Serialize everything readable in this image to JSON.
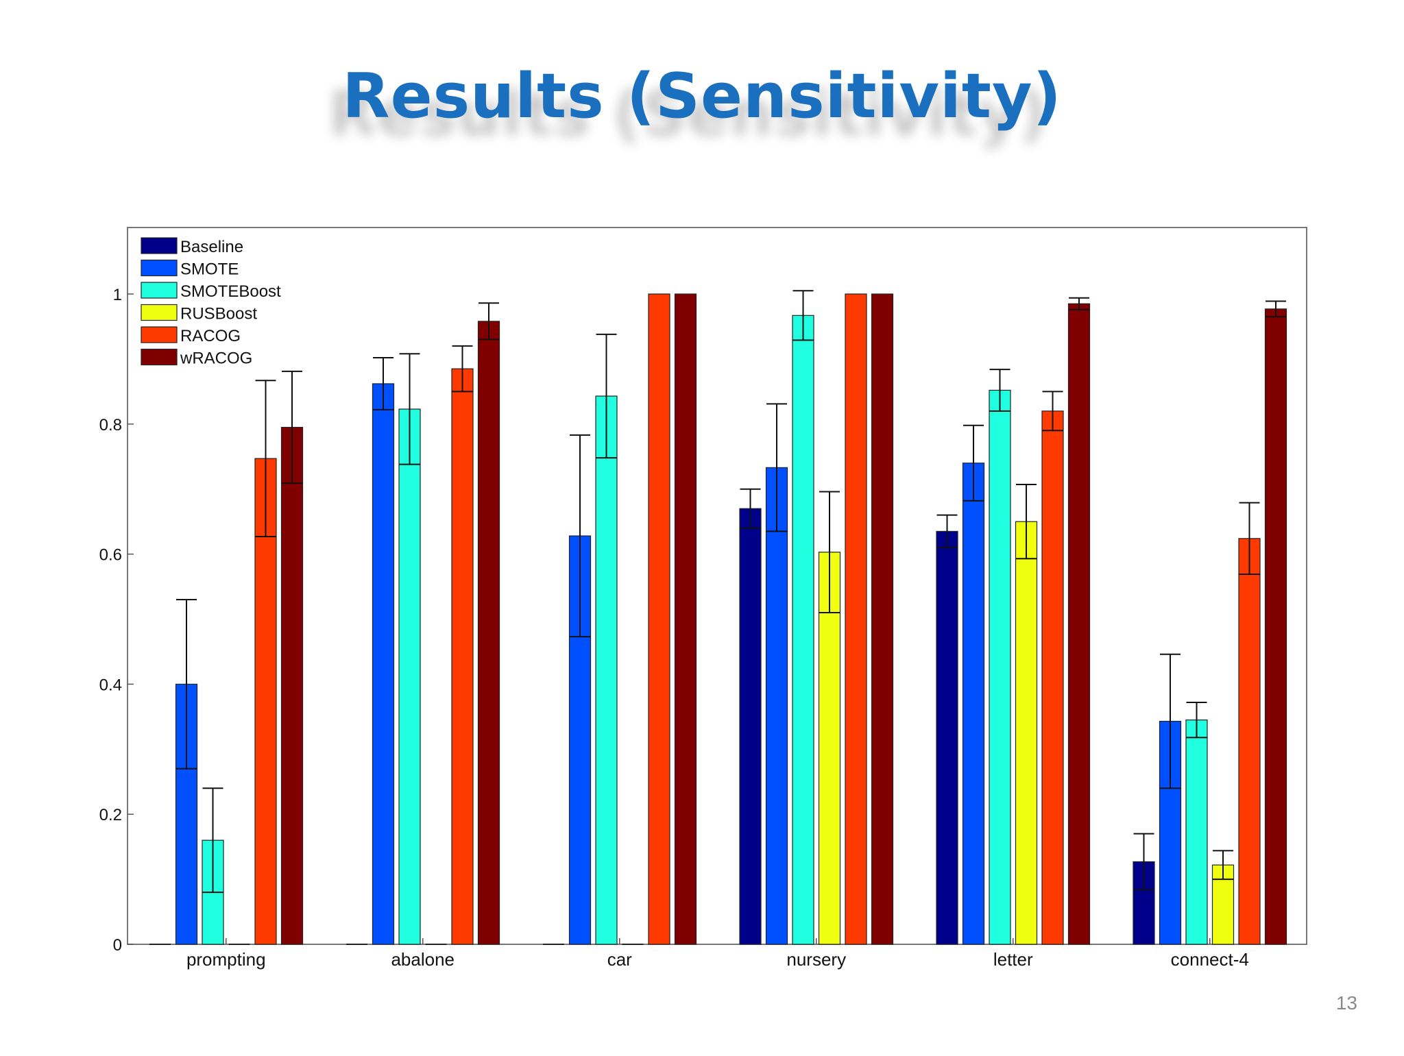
{
  "slide": {
    "title": "Results (Sensitivity)",
    "page_number": "13"
  },
  "chart_data": {
    "type": "bar",
    "title": "",
    "xlabel": "",
    "ylabel": "",
    "ylim": [
      0,
      1.1
    ],
    "yticks": [
      0,
      0.2,
      0.4,
      0.6,
      0.8,
      1
    ],
    "ytick_labels": [
      "0",
      "0.2",
      "0.4",
      "0.6",
      "0.8",
      "1"
    ],
    "grid": false,
    "legend_position": "top-left",
    "categories": [
      "prompting",
      "abalone",
      "car",
      "nursery",
      "letter",
      "connect-4"
    ],
    "series": [
      {
        "name": "Baseline",
        "color": "#00008b",
        "values": [
          0,
          0,
          0,
          0.67,
          0.635,
          0.127
        ],
        "errors": [
          0,
          0,
          0,
          0.03,
          0.025,
          0.043
        ]
      },
      {
        "name": "SMOTE",
        "color": "#0050ff",
        "values": [
          0.4,
          0.862,
          0.628,
          0.733,
          0.74,
          0.343
        ],
        "errors": [
          0.13,
          0.04,
          0.155,
          0.098,
          0.058,
          0.103
        ]
      },
      {
        "name": "SMOTEBoost",
        "color": "#20ffdf",
        "values": [
          0.16,
          0.823,
          0.843,
          0.967,
          0.852,
          0.345
        ],
        "errors": [
          0.08,
          0.085,
          0.095,
          0.038,
          0.032,
          0.027
        ]
      },
      {
        "name": "RUSBoost",
        "color": "#f0ff10",
        "values": [
          0,
          0,
          0,
          0.603,
          0.65,
          0.122
        ],
        "errors": [
          0,
          0,
          0,
          0.093,
          0.057,
          0.022
        ]
      },
      {
        "name": "RACOG",
        "color": "#ff3a00",
        "values": [
          0.747,
          0.885,
          1.0,
          1.0,
          0.82,
          0.624
        ],
        "errors": [
          0.12,
          0.035,
          0,
          0,
          0.03,
          0.055
        ]
      },
      {
        "name": "wRACOG",
        "color": "#800000",
        "values": [
          0.795,
          0.958,
          1.0,
          1.0,
          0.985,
          0.977
        ],
        "errors": [
          0.086,
          0.028,
          0,
          0,
          0.009,
          0.012
        ]
      }
    ]
  }
}
